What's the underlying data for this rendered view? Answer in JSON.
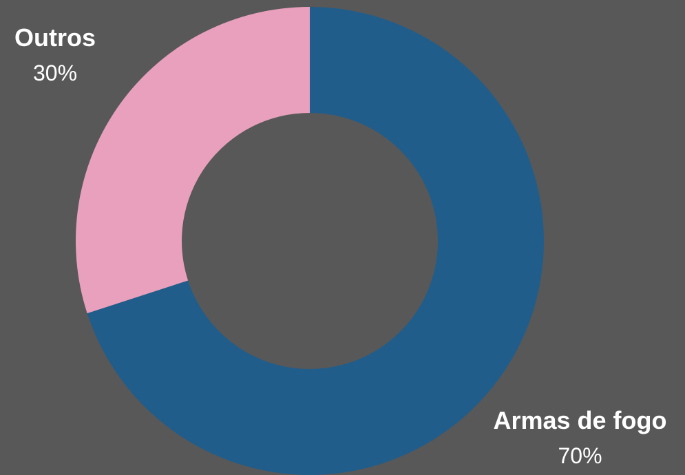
{
  "chart_data": {
    "type": "pie",
    "donut": true,
    "title": "",
    "slices": [
      {
        "label": "Armas de fogo",
        "value": 70,
        "value_label": "70%",
        "color": "#215d8a"
      },
      {
        "label": "Outros",
        "value": 30,
        "value_label": "30%",
        "color": "#e8a0bc"
      }
    ],
    "start_angle": "top",
    "direction": "clockwise",
    "background_color": "#585858"
  }
}
